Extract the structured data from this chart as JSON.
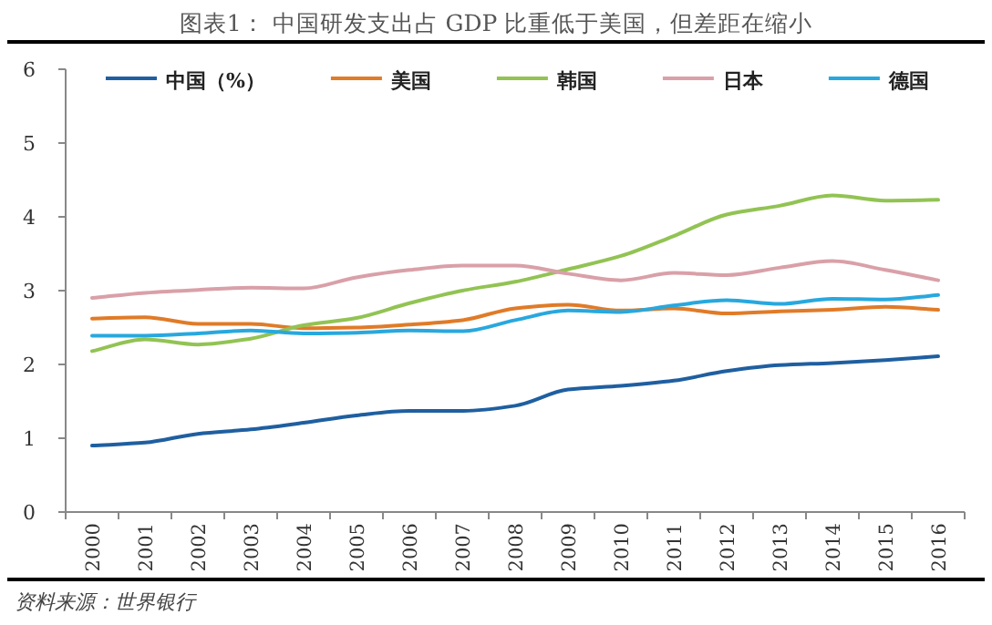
{
  "chart_data": {
    "type": "line",
    "title": "图表1：  中国研发支出占 GDP 比重低于美国，但差距在缩小",
    "annotations": [
      "资料来源：世界银行"
    ],
    "categories": [
      "2000",
      "2001",
      "2002",
      "2003",
      "2004",
      "2005",
      "2006",
      "2007",
      "2008",
      "2009",
      "2010",
      "2011",
      "2012",
      "2013",
      "2014",
      "2015",
      "2016"
    ],
    "series": [
      {
        "name": "中国（%）",
        "color": "#1f5fa0",
        "values": [
          0.9,
          0.94,
          1.06,
          1.12,
          1.21,
          1.31,
          1.37,
          1.37,
          1.44,
          1.66,
          1.71,
          1.78,
          1.91,
          1.99,
          2.02,
          2.06,
          2.11
        ]
      },
      {
        "name": "美国",
        "color": "#e07b28",
        "values": [
          2.62,
          2.64,
          2.55,
          2.55,
          2.49,
          2.5,
          2.54,
          2.6,
          2.76,
          2.81,
          2.73,
          2.76,
          2.69,
          2.72,
          2.74,
          2.78,
          2.74
        ]
      },
      {
        "name": "韩国",
        "color": "#92c353",
        "values": [
          2.18,
          2.34,
          2.27,
          2.35,
          2.53,
          2.63,
          2.83,
          3.0,
          3.12,
          3.29,
          3.47,
          3.74,
          4.03,
          4.15,
          4.29,
          4.22,
          4.23
        ]
      },
      {
        "name": "日本",
        "color": "#d9a0a8",
        "values": [
          2.9,
          2.97,
          3.01,
          3.04,
          3.03,
          3.18,
          3.28,
          3.34,
          3.34,
          3.23,
          3.14,
          3.24,
          3.21,
          3.31,
          3.4,
          3.28,
          3.14
        ]
      },
      {
        "name": "德国",
        "color": "#28a8de",
        "values": [
          2.39,
          2.39,
          2.42,
          2.46,
          2.42,
          2.43,
          2.46,
          2.45,
          2.6,
          2.73,
          2.71,
          2.8,
          2.87,
          2.82,
          2.89,
          2.88,
          2.94
        ]
      }
    ],
    "ylim": [
      0,
      6
    ],
    "yticks": [
      0,
      1,
      2,
      3,
      4,
      5,
      6
    ],
    "legend": "top",
    "line_style": "solid"
  }
}
